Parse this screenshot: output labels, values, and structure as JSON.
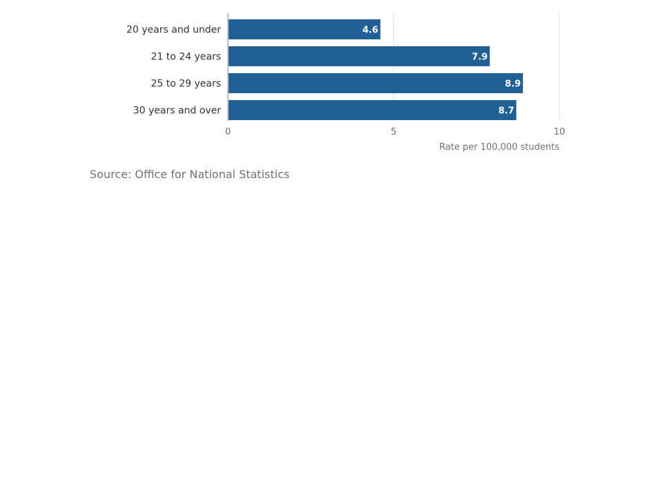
{
  "chart_data": {
    "type": "bar",
    "orientation": "horizontal",
    "categories": [
      "20 years and under",
      "21 to 24 years",
      "25 to 29 years",
      "30 years and over"
    ],
    "values": [
      4.6,
      7.9,
      8.9,
      8.7
    ],
    "value_labels": [
      "4.6",
      "7.9",
      "8.9",
      "8.7"
    ],
    "xlabel": "Rate per 100,000 students",
    "ylabel": "",
    "xlim": [
      0,
      10
    ],
    "xticks": [
      0,
      5,
      10
    ],
    "xtick_labels": [
      "0",
      "5",
      "10"
    ],
    "grid": true,
    "bar_color": "#206095",
    "grid_color": "#dddddd"
  },
  "source": "Source: Office for National Statistics"
}
